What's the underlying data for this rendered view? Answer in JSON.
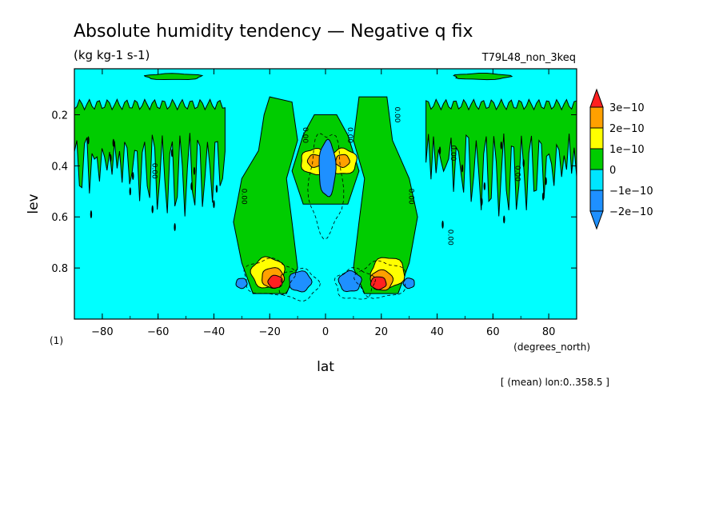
{
  "chart_data": {
    "type": "heatmap",
    "title": "Absolute humidity tendency — Negative q fix",
    "units": "(kg kg-1 s-1)",
    "experiment": "T79L48_non_3keq",
    "xlabel": "lat",
    "xunits": "(degrees_north)",
    "ylabel": "lev",
    "yunits": "(1)",
    "footnote": "[ (mean) lon:0..358.5 ]",
    "xlim": [
      -90,
      90
    ],
    "ylim": [
      1.0,
      0.02
    ],
    "xticks": [
      -80,
      -60,
      -40,
      -20,
      0,
      20,
      40,
      60,
      80
    ],
    "xtick_labels": [
      "−80",
      "−60",
      "−40",
      "−20",
      "0",
      "20",
      "40",
      "60",
      "80"
    ],
    "yticks": [
      0.2,
      0.4,
      0.6,
      0.8
    ],
    "ytick_labels": [
      "0.2",
      "0.4",
      "0.6",
      "0.8"
    ],
    "contour_label": "0.00",
    "colorbar": {
      "levels": [
        -2e-10,
        -1e-10,
        0,
        1e-10,
        2e-10,
        3e-10
      ],
      "labels": [
        "−2e−10",
        "−1e−10",
        "0",
        "1e−10",
        "2e−10",
        "3e−10"
      ],
      "colors": [
        "#1e90ff",
        "#00e5ff",
        "#00cc00",
        "#ffff00",
        "#ffa000",
        "#ff2020"
      ],
      "under_color": "#1e90ff",
      "over_color": "#ff2020"
    },
    "background_color": "#00ffff",
    "features": [
      {
        "name": "positive-max-nh",
        "lat": 19,
        "lev": 0.86,
        "value": 3e-10
      },
      {
        "name": "positive-max-sh",
        "lat": -18,
        "lev": 0.85,
        "value": 3e-10
      },
      {
        "name": "positive-eq-west",
        "lat": -5,
        "lev": 0.38,
        "value": 2e-10
      },
      {
        "name": "positive-eq-east",
        "lat": 7,
        "lev": 0.38,
        "value": 2e-10
      },
      {
        "name": "negative-eq-column",
        "lat": 0,
        "lev": 0.42,
        "value": -2e-10
      },
      {
        "name": "negative-sh-lower",
        "lat": -9,
        "lev": 0.86,
        "value": -2e-10
      },
      {
        "name": "negative-nh-lower",
        "lat": 9,
        "lev": 0.86,
        "value": -2e-10
      }
    ]
  }
}
